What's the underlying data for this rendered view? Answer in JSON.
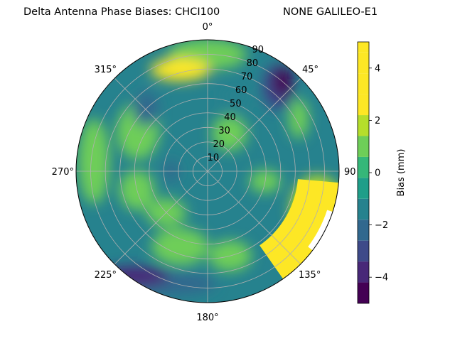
{
  "chart_data": {
    "type": "heatmap",
    "projection": "polar",
    "title_left": "Delta Antenna Phase Biases: CHCI100",
    "title_right": "NONE GALILEO-E1",
    "theta_direction": "clockwise",
    "theta_zero": "top",
    "theta_tick_labels": [
      "0°",
      "45°",
      "90",
      "135°",
      "180°",
      "225°",
      "270°",
      "315°"
    ],
    "r_tick_labels": [
      "10",
      "20",
      "30",
      "40",
      "50",
      "60",
      "70",
      "80",
      "90"
    ],
    "r_range": [
      0,
      90
    ],
    "colorbar": {
      "label": "Bias (mm)",
      "range": [
        -5,
        5
      ],
      "ticks": [
        -4,
        -2,
        0,
        2,
        4
      ],
      "tick_labels": [
        "−4",
        "−2",
        "0",
        "2",
        "4"
      ],
      "levels": [
        -5,
        -4.2,
        -3.4,
        -2.6,
        -1.8,
        -1,
        -0.2,
        0.6,
        1.4,
        2.2,
        3,
        3.8,
        4.6,
        5
      ],
      "colors": [
        "#440154",
        "#482878",
        "#3e4a89",
        "#31688e",
        "#26828e",
        "#1f9e89",
        "#35b779",
        "#6ece58",
        "#b5de2b",
        "#fde725",
        "#fde725",
        "#fde725",
        "#fde725"
      ]
    },
    "grid": true,
    "features": [
      {
        "name": "high-bias-band",
        "azimuth_deg": [
          95,
          140
        ],
        "elevation_from_zenith": [
          60,
          90
        ],
        "bias_mm": 5
      },
      {
        "name": "low-bias-spot",
        "azimuth_deg": [
          35,
          55
        ],
        "elevation_from_zenith": [
          70,
          88
        ],
        "bias_mm": -4.5
      },
      {
        "name": "low-bias-edge-south",
        "azimuth_deg": [
          170,
          260
        ],
        "elevation_from_zenith": [
          70,
          90
        ],
        "bias_mm": -3.5
      }
    ]
  }
}
